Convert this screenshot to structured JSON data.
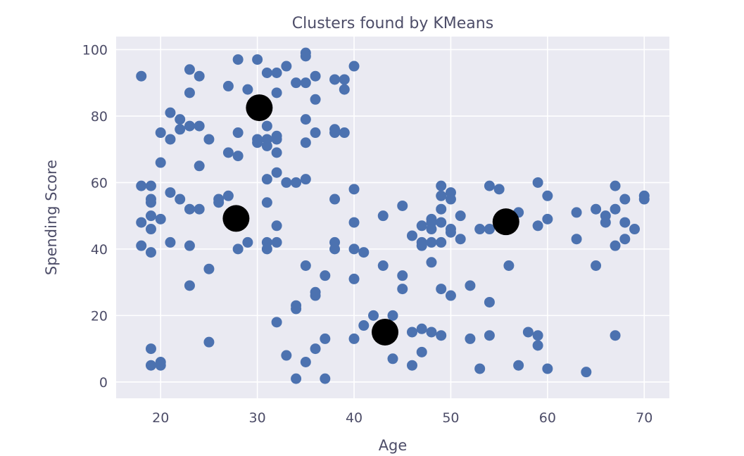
{
  "chart_data": {
    "type": "scatter",
    "title": "Clusters found by KMeans",
    "xlabel": "Age",
    "ylabel": "Spending Score",
    "xlim": [
      15.4,
      72.6
    ],
    "ylim": [
      -4.9,
      103.9
    ],
    "xticks": [
      20,
      30,
      40,
      50,
      60,
      70
    ],
    "yticks": [
      0,
      20,
      40,
      60,
      80,
      100
    ],
    "grid": true,
    "series": [
      {
        "color": "#4c72b0",
        "marker": "circle",
        "points": [
          [
            18,
            92
          ],
          [
            18,
            59
          ],
          [
            18,
            48
          ],
          [
            18,
            41
          ],
          [
            19,
            59
          ],
          [
            19,
            55
          ],
          [
            19,
            54
          ],
          [
            19,
            50
          ],
          [
            19,
            46
          ],
          [
            19,
            39
          ],
          [
            19,
            10
          ],
          [
            19,
            5
          ],
          [
            20,
            75
          ],
          [
            20,
            66
          ],
          [
            20,
            49
          ],
          [
            20,
            6
          ],
          [
            20,
            5
          ],
          [
            21,
            81
          ],
          [
            21,
            73
          ],
          [
            21,
            57
          ],
          [
            21,
            42
          ],
          [
            22,
            79
          ],
          [
            22,
            76
          ],
          [
            22,
            55
          ],
          [
            23,
            94
          ],
          [
            23,
            87
          ],
          [
            23,
            77
          ],
          [
            23,
            52
          ],
          [
            23,
            41
          ],
          [
            23,
            29
          ],
          [
            24,
            92
          ],
          [
            24,
            77
          ],
          [
            24,
            65
          ],
          [
            24,
            52
          ],
          [
            25,
            73
          ],
          [
            25,
            34
          ],
          [
            25,
            12
          ],
          [
            26,
            55
          ],
          [
            26,
            54
          ],
          [
            27,
            89
          ],
          [
            27,
            69
          ],
          [
            27,
            56
          ],
          [
            28,
            97
          ],
          [
            28,
            75
          ],
          [
            28,
            68
          ],
          [
            28,
            40
          ],
          [
            29,
            88
          ],
          [
            29,
            42
          ],
          [
            30,
            97
          ],
          [
            30,
            73
          ],
          [
            30,
            72
          ],
          [
            31,
            93
          ],
          [
            31,
            77
          ],
          [
            31,
            73
          ],
          [
            31,
            71
          ],
          [
            31,
            61
          ],
          [
            31,
            54
          ],
          [
            31,
            42
          ],
          [
            31,
            40
          ],
          [
            32,
            93
          ],
          [
            32,
            87
          ],
          [
            32,
            74
          ],
          [
            32,
            73
          ],
          [
            32,
            69
          ],
          [
            32,
            63
          ],
          [
            32,
            47
          ],
          [
            32,
            42
          ],
          [
            32,
            18
          ],
          [
            33,
            95
          ],
          [
            33,
            60
          ],
          [
            33,
            8
          ],
          [
            34,
            90
          ],
          [
            34,
            60
          ],
          [
            34,
            23
          ],
          [
            34,
            22
          ],
          [
            34,
            1
          ],
          [
            35,
            99
          ],
          [
            35,
            98
          ],
          [
            35,
            90
          ],
          [
            35,
            79
          ],
          [
            35,
            72
          ],
          [
            35,
            61
          ],
          [
            35,
            35
          ],
          [
            35,
            6
          ],
          [
            36,
            92
          ],
          [
            36,
            85
          ],
          [
            36,
            75
          ],
          [
            36,
            27
          ],
          [
            36,
            26
          ],
          [
            36,
            10
          ],
          [
            37,
            32
          ],
          [
            37,
            13
          ],
          [
            37,
            1
          ],
          [
            38,
            91
          ],
          [
            38,
            76
          ],
          [
            38,
            75
          ],
          [
            38,
            55
          ],
          [
            38,
            42
          ],
          [
            38,
            40
          ],
          [
            39,
            91
          ],
          [
            39,
            88
          ],
          [
            39,
            75
          ],
          [
            40,
            95
          ],
          [
            40,
            58
          ],
          [
            40,
            48
          ],
          [
            40,
            40
          ],
          [
            40,
            31
          ],
          [
            40,
            13
          ],
          [
            41,
            39
          ],
          [
            41,
            17
          ],
          [
            42,
            20
          ],
          [
            43,
            35
          ],
          [
            43,
            50
          ],
          [
            44,
            20
          ],
          [
            44,
            7
          ],
          [
            45,
            53
          ],
          [
            45,
            32
          ],
          [
            45,
            28
          ],
          [
            46,
            44
          ],
          [
            46,
            15
          ],
          [
            46,
            5
          ],
          [
            47,
            47
          ],
          [
            47,
            42
          ],
          [
            47,
            41
          ],
          [
            47,
            16
          ],
          [
            47,
            9
          ],
          [
            48,
            49
          ],
          [
            48,
            48
          ],
          [
            48,
            46
          ],
          [
            48,
            42
          ],
          [
            48,
            36
          ],
          [
            48,
            15
          ],
          [
            49,
            59
          ],
          [
            49,
            56
          ],
          [
            49,
            52
          ],
          [
            49,
            48
          ],
          [
            49,
            42
          ],
          [
            49,
            28
          ],
          [
            49,
            14
          ],
          [
            50,
            57
          ],
          [
            50,
            55
          ],
          [
            50,
            46
          ],
          [
            50,
            45
          ],
          [
            50,
            26
          ],
          [
            51,
            50
          ],
          [
            51,
            43
          ],
          [
            52,
            29
          ],
          [
            52,
            13
          ],
          [
            53,
            46
          ],
          [
            53,
            4
          ],
          [
            54,
            59
          ],
          [
            54,
            46
          ],
          [
            54,
            24
          ],
          [
            54,
            14
          ],
          [
            55,
            58
          ],
          [
            56,
            35
          ],
          [
            57,
            51
          ],
          [
            57,
            5
          ],
          [
            58,
            15
          ],
          [
            59,
            60
          ],
          [
            59,
            47
          ],
          [
            59,
            14
          ],
          [
            59,
            11
          ],
          [
            60,
            56
          ],
          [
            60,
            49
          ],
          [
            60,
            4
          ],
          [
            63,
            51
          ],
          [
            63,
            43
          ],
          [
            64,
            3
          ],
          [
            65,
            52
          ],
          [
            65,
            35
          ],
          [
            66,
            50
          ],
          [
            66,
            48
          ],
          [
            67,
            59
          ],
          [
            67,
            52
          ],
          [
            67,
            41
          ],
          [
            67,
            14
          ],
          [
            68,
            55
          ],
          [
            68,
            48
          ],
          [
            68,
            43
          ],
          [
            69,
            46
          ],
          [
            70,
            56
          ],
          [
            70,
            55
          ]
        ]
      },
      {
        "color": "#000000",
        "marker": "circle",
        "points": [
          [
            30.2,
            82.5
          ],
          [
            27.8,
            49.2
          ],
          [
            55.7,
            48.2
          ],
          [
            43.2,
            15.0
          ]
        ]
      }
    ]
  }
}
